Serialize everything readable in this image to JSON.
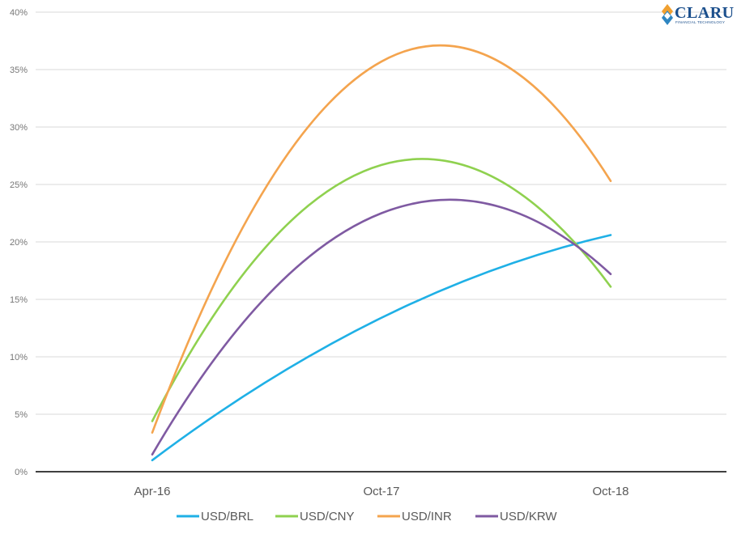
{
  "logo": {
    "word": "CLARUS",
    "subtitle": "FINANCIAL TECHNOLOGY",
    "colors": [
      "#f0a030",
      "#1b4f8c",
      "#2e86c1"
    ]
  },
  "chart_data": {
    "type": "line",
    "title": "",
    "xlabel": "",
    "ylabel": "",
    "categories": [
      "Apr-16",
      "Oct-17",
      "Oct-18"
    ],
    "ylim": [
      0,
      40
    ],
    "yticks": [
      0,
      5,
      10,
      15,
      20,
      25,
      30,
      35,
      40
    ],
    "ytick_labels": [
      "0%",
      "5%",
      "10%",
      "15%",
      "20%",
      "25%",
      "30%",
      "35%",
      "40%"
    ],
    "grid": true,
    "legend_position": "bottom",
    "series": [
      {
        "name": "USD/BRL",
        "color": "#1fb0e6",
        "values": [
          1.0,
          13.4,
          20.6
        ]
      },
      {
        "name": "USD/CNY",
        "color": "#8fd14f",
        "values": [
          4.4,
          26.7,
          16.1
        ]
      },
      {
        "name": "USD/INR",
        "color": "#f4a44e",
        "values": [
          3.4,
          35.7,
          25.3
        ]
      },
      {
        "name": "USD/KRW",
        "color": "#7f5aa2",
        "values": [
          1.5,
          22.5,
          17.2
        ]
      }
    ]
  }
}
